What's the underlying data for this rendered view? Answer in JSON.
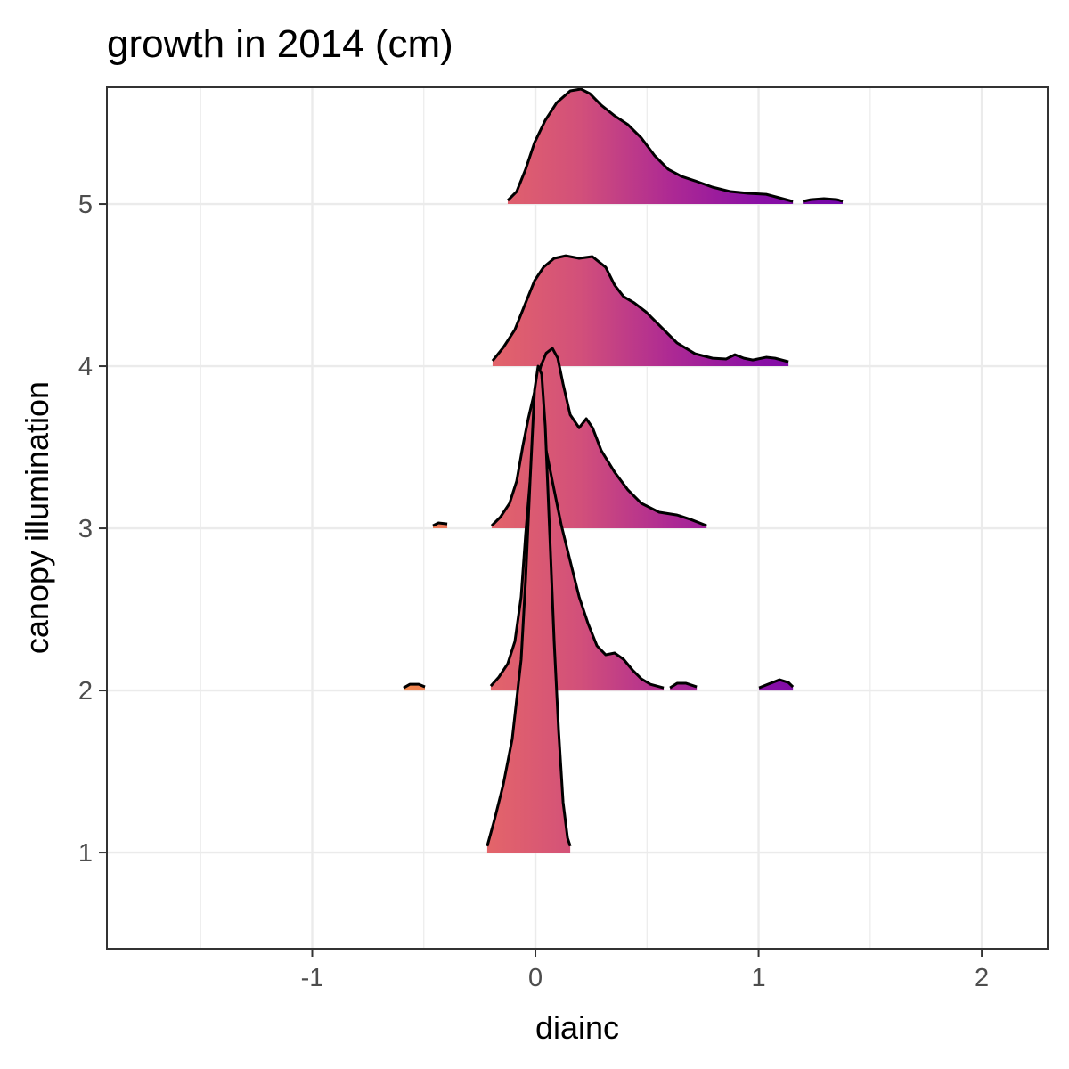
{
  "chart_data": {
    "type": "ridgeline",
    "title": "growth in 2014 (cm)",
    "x_label": "diainc",
    "y_label": "canopy illumination",
    "xlim": [
      -1.92,
      2.295
    ],
    "ylim": [
      0.407,
      5.72
    ],
    "xticks": [
      -1,
      0,
      1,
      2
    ],
    "xminor": [
      -1.5,
      -0.5,
      0.5,
      1.5
    ],
    "yticks": [
      1,
      2,
      3,
      4,
      5
    ],
    "grid": true,
    "line_color": "#000000",
    "fill_gradient": [
      {
        "x": -0.6,
        "color": "#f3894b"
      },
      {
        "x": -0.2,
        "color": "#e3646a"
      },
      {
        "x": 0.2,
        "color": "#d2507a"
      },
      {
        "x": 0.6,
        "color": "#ae2a93"
      },
      {
        "x": 1.0,
        "color": "#8a10a5"
      },
      {
        "x": 1.4,
        "color": "#7105a8"
      }
    ],
    "ridges": [
      {
        "y": 5,
        "x": [
          -0.124,
          -0.084,
          -0.044,
          -0.004,
          0.044,
          0.096,
          0.156,
          0.204,
          0.244,
          0.295,
          0.355,
          0.415,
          0.475,
          0.535,
          0.595,
          0.655,
          0.715,
          0.794,
          0.874,
          0.954,
          1.034,
          1.094,
          1.154,
          null,
          1.198,
          1.234,
          1.293,
          1.353,
          1.377
        ],
        "height": [
          0.022,
          0.077,
          0.214,
          0.379,
          0.516,
          0.626,
          0.698,
          0.709,
          0.681,
          0.61,
          0.544,
          0.489,
          0.407,
          0.297,
          0.214,
          0.17,
          0.143,
          0.104,
          0.077,
          0.066,
          0.06,
          0.038,
          0.016,
          null,
          0.016,
          0.027,
          0.033,
          0.027,
          0.016
        ]
      },
      {
        "y": 4,
        "x": [
          -0.192,
          -0.144,
          -0.092,
          -0.044,
          -0.004,
          0.036,
          0.084,
          0.136,
          0.196,
          0.255,
          0.315,
          0.355,
          0.395,
          0.443,
          0.495,
          0.555,
          0.635,
          0.715,
          0.794,
          0.854,
          0.894,
          0.934,
          0.974,
          1.034,
          1.074,
          1.134
        ],
        "height": [
          0.033,
          0.115,
          0.225,
          0.39,
          0.527,
          0.61,
          0.665,
          0.681,
          0.665,
          0.676,
          0.61,
          0.5,
          0.429,
          0.39,
          0.335,
          0.253,
          0.143,
          0.077,
          0.049,
          0.044,
          0.071,
          0.049,
          0.038,
          0.055,
          0.049,
          0.027
        ]
      },
      {
        "y": 3,
        "x": [
          -0.459,
          -0.435,
          -0.395,
          null,
          -0.196,
          -0.156,
          -0.116,
          -0.084,
          -0.056,
          -0.032,
          -0.004,
          0.024,
          0.048,
          0.076,
          0.1,
          0.124,
          0.156,
          0.196,
          0.228,
          0.256,
          0.295,
          0.355,
          0.415,
          0.475,
          0.555,
          0.635,
          0.695,
          0.767
        ],
        "height": [
          0.016,
          0.033,
          0.027,
          null,
          0.016,
          0.071,
          0.154,
          0.291,
          0.511,
          0.676,
          0.841,
          1.0,
          1.08,
          1.11,
          1.05,
          0.89,
          0.7,
          0.62,
          0.676,
          0.62,
          0.48,
          0.346,
          0.236,
          0.154,
          0.099,
          0.082,
          0.055,
          0.016
        ]
      },
      {
        "y": 2,
        "x": [
          -0.591,
          -0.563,
          -0.523,
          -0.495,
          null,
          -0.2,
          -0.164,
          -0.124,
          -0.092,
          -0.064,
          -0.044,
          -0.024,
          -0.004,
          0.016,
          0.044,
          0.076,
          0.116,
          0.156,
          0.196,
          0.236,
          0.276,
          0.315,
          0.355,
          0.395,
          0.435,
          0.475,
          0.515,
          0.575,
          null,
          0.603,
          0.635,
          0.675,
          0.723,
          null,
          1.002,
          1.042,
          1.094,
          1.134,
          1.154
        ],
        "height": [
          0.016,
          0.038,
          0.038,
          0.022,
          null,
          0.027,
          0.082,
          0.165,
          0.302,
          0.577,
          0.962,
          1.29,
          1.51,
          1.55,
          1.51,
          1.29,
          1.02,
          0.797,
          0.577,
          0.412,
          0.275,
          0.22,
          0.231,
          0.192,
          0.126,
          0.071,
          0.038,
          0.016,
          null,
          0.016,
          0.044,
          0.044,
          0.022,
          null,
          0.016,
          0.038,
          0.066,
          0.049,
          0.022
        ]
      },
      {
        "y": 1,
        "x": [
          -0.216,
          -0.184,
          -0.144,
          -0.104,
          -0.064,
          -0.044,
          -0.024,
          -0.004,
          0.012,
          0.028,
          0.044,
          0.064,
          0.084,
          0.104,
          0.124,
          0.144,
          0.156
        ],
        "height": [
          0.04,
          0.2,
          0.42,
          0.7,
          1.19,
          1.68,
          2.29,
          2.85,
          3.0,
          2.95,
          2.63,
          1.97,
          1.3,
          0.75,
          0.31,
          0.09,
          0.04
        ]
      }
    ]
  }
}
